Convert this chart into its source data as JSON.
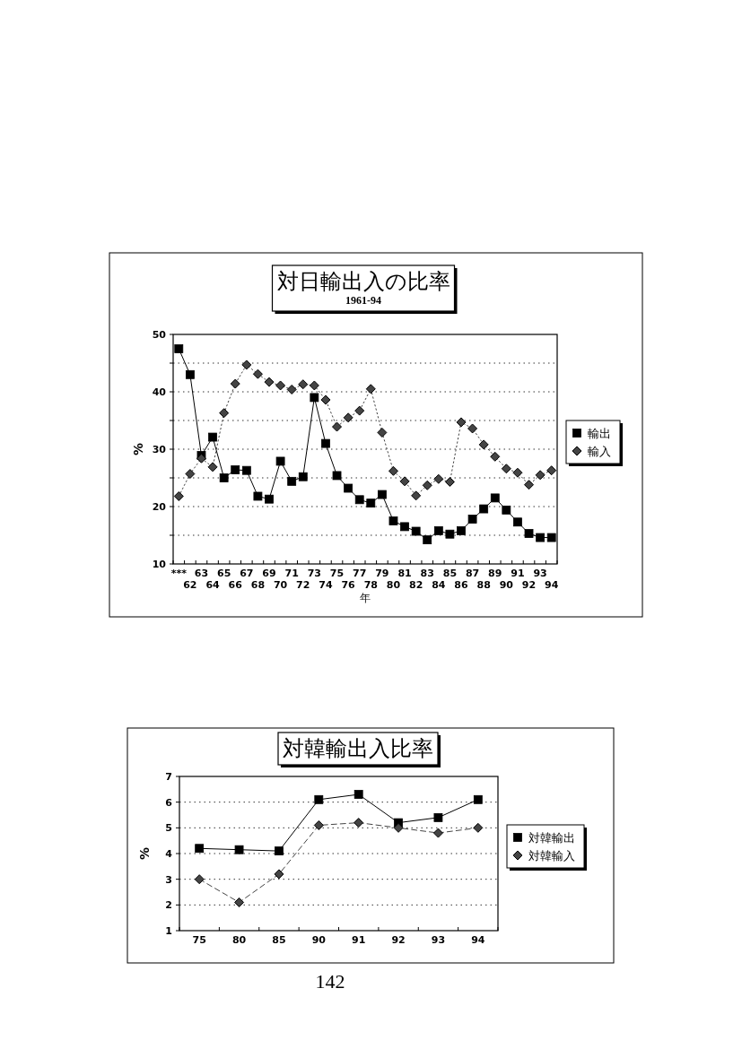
{
  "chart_data": [
    {
      "type": "line",
      "title": "対日輸出入の比率",
      "subtitle": "1961-94",
      "xlabel": "年",
      "ylabel": "%",
      "categories": [
        "***",
        "62",
        "63",
        "64",
        "65",
        "66",
        "67",
        "68",
        "69",
        "70",
        "71",
        "72",
        "73",
        "74",
        "75",
        "76",
        "77",
        "78",
        "79",
        "80",
        "81",
        "82",
        "83",
        "84",
        "85",
        "86",
        "87",
        "88",
        "89",
        "90",
        "91",
        "92",
        "93",
        "94"
      ],
      "series": [
        {
          "name": "輸出",
          "color": "#000000",
          "marker": "square",
          "line_style": "solid",
          "values": [
            47.5,
            43.0,
            28.9,
            32.1,
            25.0,
            26.4,
            26.3,
            21.8,
            21.3,
            27.9,
            24.4,
            25.2,
            39.0,
            31.0,
            25.4,
            23.2,
            21.2,
            20.6,
            22.1,
            17.5,
            16.5,
            15.7,
            14.2,
            15.8,
            15.2,
            15.8,
            17.8,
            19.6,
            21.5,
            19.4,
            17.3,
            15.3,
            14.6,
            14.6
          ]
        },
        {
          "name": "輸入",
          "color": "#444444",
          "marker": "diamond",
          "line_style": "dotted",
          "values": [
            21.8,
            25.7,
            28.4,
            26.9,
            36.3,
            41.4,
            44.7,
            43.1,
            41.7,
            41.1,
            40.4,
            41.3,
            41.1,
            38.6,
            33.9,
            35.5,
            36.7,
            40.5,
            32.9,
            26.2,
            24.4,
            21.9,
            23.7,
            24.8,
            24.3,
            34.7,
            33.6,
            30.8,
            28.7,
            26.6,
            25.9,
            23.8,
            25.5,
            26.3
          ]
        }
      ],
      "ylim": [
        10,
        50
      ],
      "yticks": [
        10,
        {
          "value": 15,
          "label": null
        },
        20,
        {
          "value": 25,
          "label": null
        },
        30,
        {
          "value": 35,
          "label": null
        },
        40,
        {
          "value": 45,
          "label": null
        },
        50
      ],
      "grid": "y",
      "legend": "right"
    },
    {
      "type": "line",
      "title": "対韓輸出入比率",
      "ylabel": "%",
      "categories": [
        "75",
        "80",
        "85",
        "90",
        "91",
        "92",
        "93",
        "94"
      ],
      "series": [
        {
          "name": "対韓輸出",
          "color": "#000000",
          "marker": "square",
          "line_style": "solid",
          "values": [
            4.2,
            4.15,
            4.1,
            6.1,
            6.3,
            5.2,
            5.4,
            6.1
          ]
        },
        {
          "name": "対韓輸入",
          "color": "#444444",
          "marker": "diamond",
          "line_style": "dashed",
          "values": [
            3.0,
            2.1,
            3.2,
            5.1,
            5.2,
            5.0,
            4.8,
            5.0
          ]
        }
      ],
      "ylim": [
        1,
        7
      ],
      "yticks": [
        1,
        2,
        3,
        4,
        5,
        6,
        7
      ],
      "grid": "y",
      "legend": "right",
      "annotations": [
        "142"
      ]
    }
  ]
}
